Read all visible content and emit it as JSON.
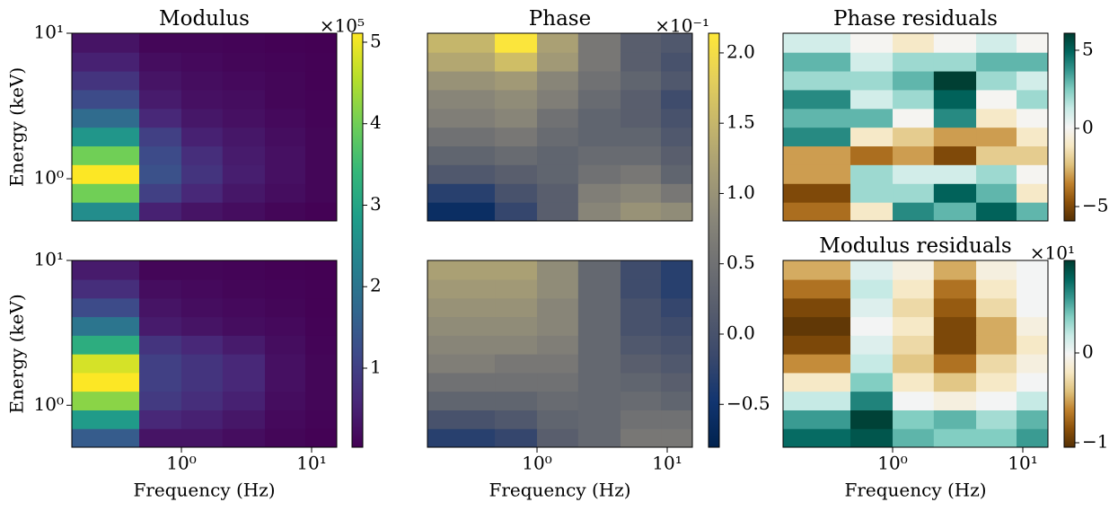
{
  "chart_data": [
    {
      "type": "heatmap",
      "title": "Modulus",
      "ylabel": "Energy (keV)",
      "log_x": true,
      "log_y": true,
      "colormap": "viridis",
      "xlim": [
        0.144,
        15.6
      ],
      "ylim": [
        0.513,
        10
      ],
      "yticks": [
        {
          "value": 1,
          "label": "10⁰"
        },
        {
          "value": 10,
          "label": "10¹"
        }
      ],
      "x_bins": [
        0.144,
        0.474,
        1.0,
        2.07,
        4.38,
        8.95,
        15.6
      ],
      "y_bins": [
        0.513,
        0.69,
        0.928,
        1.25,
        1.68,
        2.26,
        3.04,
        4.09,
        5.5,
        7.4,
        10
      ],
      "z": [
        [
          2.5,
          0.5,
          0.3,
          0.2,
          0.1,
          0.05
        ],
        [
          4.0,
          1.0,
          0.6,
          0.35,
          0.2,
          0.1
        ],
        [
          5.1,
          1.3,
          0.8,
          0.45,
          0.25,
          0.1
        ],
        [
          4.0,
          1.2,
          0.7,
          0.4,
          0.25,
          0.1
        ],
        [
          2.7,
          1.0,
          0.5,
          0.35,
          0.2,
          0.1
        ],
        [
          1.8,
          0.6,
          0.35,
          0.25,
          0.15,
          0.08
        ],
        [
          1.2,
          0.4,
          0.25,
          0.2,
          0.1,
          0.06
        ],
        [
          0.8,
          0.3,
          0.2,
          0.15,
          0.1,
          0.05
        ],
        [
          0.5,
          0.2,
          0.15,
          0.1,
          0.08,
          0.05
        ],
        [
          0.3,
          0.1,
          0.1,
          0.08,
          0.05,
          0.03
        ]
      ],
      "colorbar": {
        "clim": [
          0.03,
          5.11
        ],
        "ticks": [
          1,
          2,
          3,
          4,
          5
        ],
        "offset_label": "×10⁵"
      }
    },
    {
      "type": "heatmap",
      "title": "Phase",
      "log_x": true,
      "log_y": true,
      "colormap": "cividis",
      "xlim": [
        0.144,
        15.6
      ],
      "ylim": [
        0.513,
        10
      ],
      "x_bins": [
        0.144,
        0.474,
        1.0,
        2.07,
        4.38,
        8.95,
        15.6
      ],
      "y_bins": [
        0.513,
        0.69,
        0.928,
        1.25,
        1.68,
        2.26,
        3.04,
        4.09,
        5.5,
        7.4,
        10
      ],
      "z": [
        [
          -0.6,
          -0.2,
          0.2,
          0.8,
          1.0,
          0.9
        ],
        [
          -0.3,
          0.0,
          0.2,
          0.7,
          0.8,
          0.6
        ],
        [
          0.1,
          0.2,
          0.3,
          0.5,
          0.6,
          0.3
        ],
        [
          0.3,
          0.4,
          0.3,
          0.4,
          0.4,
          0.2
        ],
        [
          0.5,
          0.6,
          0.4,
          0.3,
          0.3,
          0.1
        ],
        [
          0.7,
          0.8,
          0.5,
          0.3,
          0.2,
          0.0
        ],
        [
          0.8,
          0.9,
          0.7,
          0.4,
          0.2,
          -0.1
        ],
        [
          1.0,
          1.1,
          0.8,
          0.5,
          0.3,
          0.1
        ],
        [
          1.3,
          1.6,
          1.1,
          0.6,
          0.2,
          0.0
        ],
        [
          1.5,
          2.1,
          1.2,
          0.6,
          0.2,
          0.1
        ]
      ],
      "colorbar": {
        "clim": [
          -0.805,
          2.14
        ],
        "ticks": [
          {
            "value": -0.5,
            "label": "−0.5"
          },
          {
            "value": 0,
            "label": "0.0"
          },
          0.5,
          {
            "value": 1,
            "label": "1.0"
          },
          1.5,
          {
            "value": 2,
            "label": "2.0"
          }
        ],
        "offset_label": "×10⁻¹"
      }
    },
    {
      "type": "heatmap",
      "title": "Phase residuals",
      "log_x": true,
      "log_y": true,
      "colormap": "BrBG",
      "xlim": [
        0.144,
        15.6
      ],
      "ylim": [
        0.513,
        10
      ],
      "x_bins": [
        0.144,
        0.474,
        1.0,
        2.07,
        4.38,
        8.95,
        15.6
      ],
      "y_bins": [
        0.513,
        0.69,
        0.928,
        1.25,
        1.68,
        2.26,
        3.04,
        4.09,
        5.5,
        7.4,
        10
      ],
      "z": [
        [
          -4,
          -1,
          4,
          3,
          5,
          3
        ],
        [
          -5,
          2,
          2,
          5,
          3,
          -1
        ],
        [
          -3,
          2,
          1,
          1,
          2,
          0
        ],
        [
          -3,
          -4,
          -3,
          -5,
          -2,
          -2
        ],
        [
          4,
          -1,
          -2,
          -3,
          -3,
          -1
        ],
        [
          3,
          3,
          0,
          4,
          -1,
          0
        ],
        [
          4,
          1,
          2,
          5,
          0,
          2
        ],
        [
          2,
          2,
          3,
          6,
          2,
          1
        ],
        [
          3,
          1,
          2,
          2,
          3,
          3
        ],
        [
          1,
          0,
          -1,
          0,
          1,
          0
        ]
      ],
      "colorbar": {
        "clim": [
          -5.92,
          6.09
        ],
        "ticks": [
          {
            "value": -5,
            "label": "−5"
          },
          0,
          5
        ]
      }
    },
    {
      "type": "heatmap",
      "xlabel": "Frequency (Hz)",
      "ylabel": "Energy (keV)",
      "log_x": true,
      "log_y": true,
      "colormap": "viridis",
      "xlim": [
        0.144,
        15.6
      ],
      "ylim": [
        0.513,
        10
      ],
      "xticks": [
        {
          "value": 1,
          "label": "10⁰"
        },
        {
          "value": 10,
          "label": "10¹"
        }
      ],
      "yticks": [
        {
          "value": 1,
          "label": "10⁰"
        },
        {
          "value": 10,
          "label": "10¹"
        }
      ],
      "x_bins": [
        0.144,
        0.474,
        1.0,
        2.07,
        4.38,
        8.95,
        15.6
      ],
      "y_bins": [
        0.513,
        0.69,
        0.928,
        1.25,
        1.68,
        2.26,
        3.04,
        4.09,
        5.5,
        7.4,
        10
      ],
      "z": [
        [
          1.5,
          0.3,
          0.3,
          0.2,
          0.1,
          0.05
        ],
        [
          2.8,
          0.6,
          0.5,
          0.35,
          0.15,
          0.08
        ],
        [
          4.2,
          0.9,
          0.7,
          0.5,
          0.2,
          0.1
        ],
        [
          5.1,
          1.0,
          0.8,
          0.6,
          0.25,
          0.1
        ],
        [
          4.8,
          1.0,
          0.8,
          0.6,
          0.25,
          0.1
        ],
        [
          3.2,
          0.8,
          0.6,
          0.4,
          0.2,
          0.08
        ],
        [
          2.0,
          0.4,
          0.3,
          0.2,
          0.15,
          0.06
        ],
        [
          1.2,
          0.3,
          0.2,
          0.15,
          0.1,
          0.05
        ],
        [
          0.7,
          0.2,
          0.15,
          0.1,
          0.08,
          0.04
        ],
        [
          0.4,
          0.1,
          0.1,
          0.08,
          0.05,
          0.03
        ]
      ]
    },
    {
      "type": "heatmap",
      "xlabel": "Frequency (Hz)",
      "log_x": true,
      "log_y": true,
      "colormap": "cividis",
      "xlim": [
        0.144,
        15.6
      ],
      "ylim": [
        0.513,
        10
      ],
      "xticks": [
        {
          "value": 1,
          "label": "10⁰"
        },
        {
          "value": 10,
          "label": "10¹"
        }
      ],
      "x_bins": [
        0.144,
        0.474,
        1.0,
        2.07,
        4.38,
        8.95,
        15.6
      ],
      "y_bins": [
        0.513,
        0.69,
        0.928,
        1.25,
        1.68,
        2.26,
        3.04,
        4.09,
        5.5,
        7.4,
        10
      ],
      "z": [
        [
          -0.3,
          -0.2,
          0.2,
          0.35,
          0.6,
          0.6
        ],
        [
          0.0,
          0.1,
          0.3,
          0.35,
          0.5,
          0.5
        ],
        [
          0.3,
          0.3,
          0.4,
          0.35,
          0.4,
          0.3
        ],
        [
          0.5,
          0.5,
          0.5,
          0.35,
          0.3,
          0.2
        ],
        [
          0.7,
          0.6,
          0.6,
          0.35,
          0.2,
          0.1
        ],
        [
          0.8,
          0.8,
          0.7,
          0.35,
          0.1,
          0.0
        ],
        [
          0.9,
          0.9,
          0.8,
          0.35,
          0.0,
          -0.1
        ],
        [
          1.0,
          1.0,
          0.8,
          0.35,
          0.0,
          -0.2
        ],
        [
          1.1,
          1.1,
          0.9,
          0.35,
          -0.1,
          -0.3
        ],
        [
          1.2,
          1.2,
          0.9,
          0.35,
          -0.1,
          -0.3
        ]
      ]
    },
    {
      "type": "heatmap",
      "title": "Modulus residuals",
      "xlabel": "Frequency (Hz)",
      "log_x": true,
      "log_y": true,
      "colormap": "BrBG",
      "xlim": [
        0.144,
        15.6
      ],
      "ylim": [
        0.513,
        10
      ],
      "xticks": [
        {
          "value": 1,
          "label": "10⁰"
        },
        {
          "value": 10,
          "label": "10¹"
        }
      ],
      "x_bins": [
        0.144,
        0.474,
        1.0,
        2.07,
        4.38,
        8.95,
        15.6
      ],
      "y_bins": [
        0.513,
        0.69,
        0.928,
        1.25,
        1.68,
        2.26,
        3.04,
        4.09,
        5.5,
        7.4,
        10
      ],
      "z": [
        [
          0.8,
          0.9,
          0.5,
          0.4,
          0.4,
          0.6
        ],
        [
          0.6,
          1.0,
          0.4,
          0.5,
          0.3,
          0.5
        ],
        [
          0.2,
          0.7,
          0.0,
          -0.1,
          0.0,
          0.2
        ],
        [
          -0.2,
          0.4,
          -0.2,
          -0.4,
          -0.2,
          0.0
        ],
        [
          -0.6,
          0.2,
          -0.4,
          -0.7,
          -0.3,
          -0.1
        ],
        [
          -0.9,
          0.1,
          -0.3,
          -0.9,
          -0.5,
          -0.2
        ],
        [
          -1.0,
          0.0,
          -0.2,
          -0.9,
          -0.5,
          -0.1
        ],
        [
          -0.9,
          0.1,
          -0.3,
          -0.8,
          -0.3,
          0.0
        ],
        [
          -0.7,
          0.2,
          -0.2,
          -0.7,
          -0.2,
          0.0
        ],
        [
          -0.5,
          0.1,
          -0.1,
          -0.5,
          -0.1,
          0.0
        ]
      ],
      "colorbar": {
        "clim": [
          -1.05,
          1.03
        ],
        "ticks": [
          {
            "value": -1,
            "label": "−1"
          },
          0
        ],
        "offset_label": "×10¹"
      }
    }
  ]
}
